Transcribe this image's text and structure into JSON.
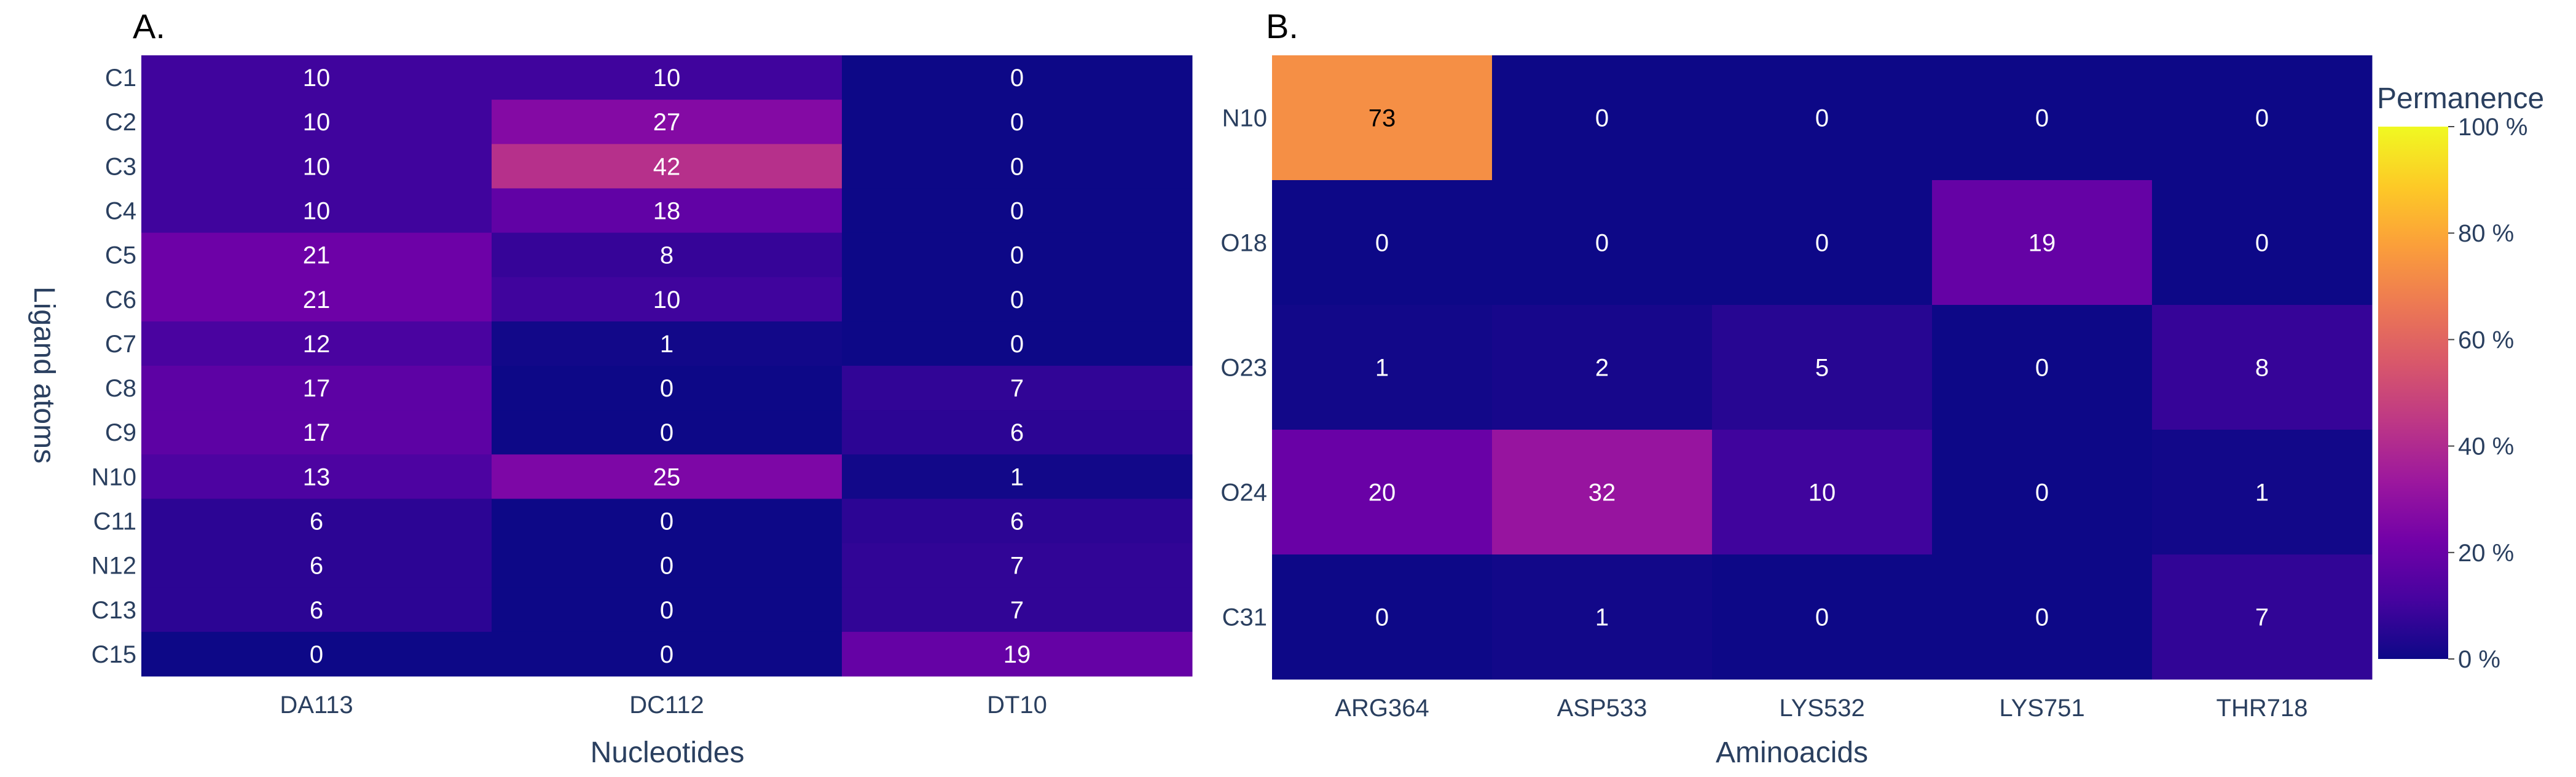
{
  "chart_data": [
    {
      "type": "heatmap",
      "panel_label": "A.",
      "xlabel": "Nucleotides",
      "ylabel": "Ligand atoms",
      "x": [
        "DA113",
        "DC112",
        "DT10"
      ],
      "y": [
        "C1",
        "C2",
        "C3",
        "C4",
        "C5",
        "C6",
        "C7",
        "C8",
        "C9",
        "N10",
        "C11",
        "N12",
        "C13",
        "C15"
      ],
      "z": [
        [
          10,
          10,
          0
        ],
        [
          10,
          27,
          0
        ],
        [
          10,
          42,
          0
        ],
        [
          10,
          18,
          0
        ],
        [
          21,
          8,
          0
        ],
        [
          21,
          10,
          0
        ],
        [
          12,
          1,
          0
        ],
        [
          17,
          0,
          7
        ],
        [
          17,
          0,
          6
        ],
        [
          13,
          25,
          1
        ],
        [
          6,
          0,
          6
        ],
        [
          6,
          0,
          7
        ],
        [
          6,
          0,
          7
        ],
        [
          0,
          0,
          19
        ]
      ],
      "zlim": [
        0,
        100
      ]
    },
    {
      "type": "heatmap",
      "panel_label": "B.",
      "xlabel": "Aminoacids",
      "ylabel": "",
      "x": [
        "ARG364",
        "ASP533",
        "LYS532",
        "LYS751",
        "THR718"
      ],
      "y": [
        "N10",
        "O18",
        "O23",
        "O24",
        "C31"
      ],
      "z": [
        [
          73,
          0,
          0,
          0,
          0
        ],
        [
          0,
          0,
          0,
          19,
          0
        ],
        [
          1,
          2,
          5,
          0,
          8
        ],
        [
          20,
          32,
          10,
          0,
          1
        ],
        [
          0,
          1,
          0,
          0,
          7
        ]
      ],
      "zlim": [
        0,
        100
      ]
    }
  ],
  "colorbar": {
    "title": "Permanence",
    "ticks": [
      "0 %",
      "20 %",
      "40 %",
      "60 %",
      "80 %",
      "100 %"
    ],
    "tick_values": [
      0,
      20,
      40,
      60,
      80,
      100
    ],
    "colorscale": [
      "#0d0887",
      "#46039f",
      "#7201a8",
      "#9c179e",
      "#bd3786",
      "#d8576b",
      "#ed7953",
      "#fb9f3a",
      "#fdca26",
      "#f0f921"
    ]
  }
}
